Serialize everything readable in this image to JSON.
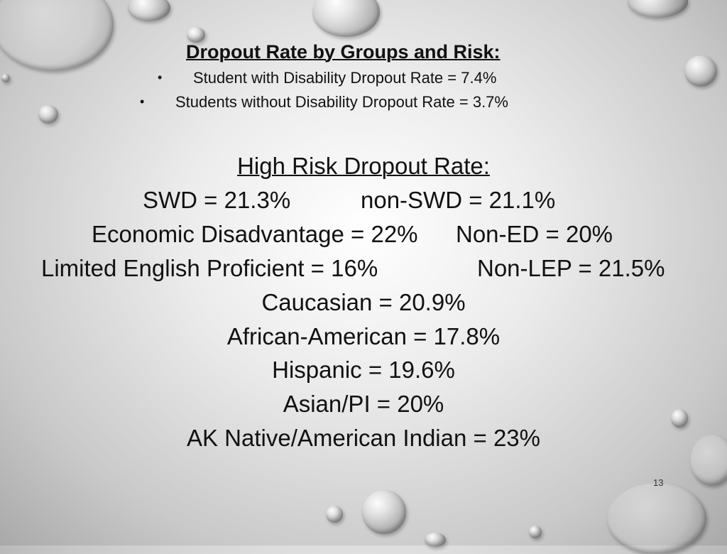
{
  "slide": {
    "heading": "Dropout Rate by Groups and Risk:",
    "bullets": [
      "Student with Disability Dropout Rate = 7.4%",
      "Students without Disability Dropout Rate = 3.7%"
    ],
    "bullet_glyph": "•",
    "high_risk": {
      "title": "High Risk Dropout Rate:",
      "pairs": [
        {
          "left": "SWD = 21.3%",
          "right": "non-SWD = 21.1%"
        },
        {
          "left": "Economic Disadvantage = 22%",
          "right": "Non-ED = 20%"
        },
        {
          "left": "Limited English Proficient = 16%",
          "right": "Non-LEP = 21.5%"
        }
      ],
      "lines": [
        "Caucasian = 20.9%",
        "African-American = 17.8%",
        "Hispanic = 19.6%",
        "Asian/PI = 20%",
        "AK Native/American Indian = 23%"
      ]
    },
    "page_number": "13"
  }
}
